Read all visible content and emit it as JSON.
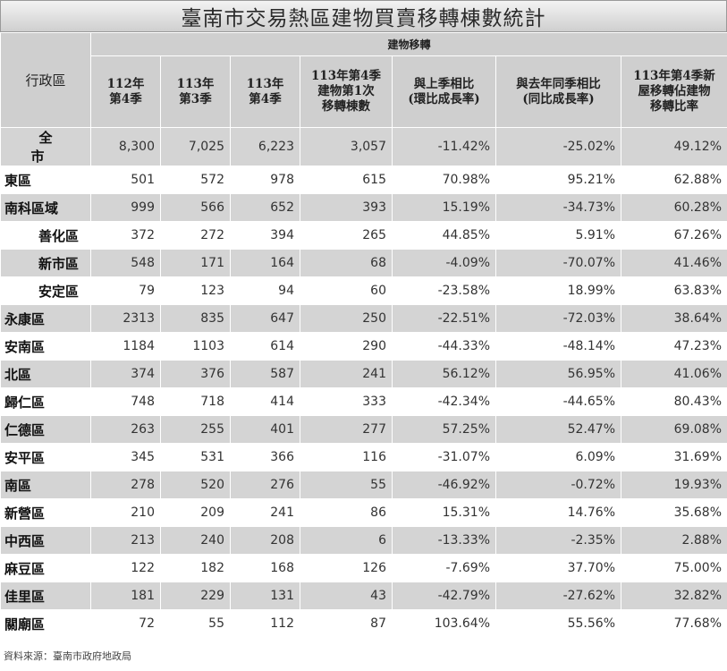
{
  "title": "臺南市交易熱區建物買賣移轉棟數統計",
  "header": {
    "district_label": "行政區",
    "group_label": "建物移轉",
    "columns": [
      "112年\n第4季",
      "113年\n第3季",
      "113年\n第4季",
      "113年第4季\n建物第1次\n移轉棟數",
      "與上季相比\n(環比成長率)",
      "與去年同季相比\n(同比成長率)",
      "113年第4季新\n屋移轉佔建物\n移轉比率"
    ]
  },
  "rows": [
    {
      "name": "全 市",
      "v": [
        "8,300",
        "7,025",
        "6,223",
        "3,057",
        "-11.42%",
        "-25.02%",
        "49.12%"
      ]
    },
    {
      "name": "東區",
      "v": [
        "501",
        "572",
        "978",
        "615",
        "70.98%",
        "95.21%",
        "62.88%"
      ]
    },
    {
      "name": "南科區域",
      "v": [
        "999",
        "566",
        "652",
        "393",
        "15.19%",
        "-34.73%",
        "60.28%"
      ]
    },
    {
      "name": "善化區",
      "v": [
        "372",
        "272",
        "394",
        "265",
        "44.85%",
        "5.91%",
        "67.26%"
      ]
    },
    {
      "name": "新市區",
      "v": [
        "548",
        "171",
        "164",
        "68",
        "-4.09%",
        "-70.07%",
        "41.46%"
      ]
    },
    {
      "name": "安定區",
      "v": [
        "79",
        "123",
        "94",
        "60",
        "-23.58%",
        "18.99%",
        "63.83%"
      ]
    },
    {
      "name": "永康區",
      "v": [
        "2313",
        "835",
        "647",
        "250",
        "-22.51%",
        "-72.03%",
        "38.64%"
      ]
    },
    {
      "name": "安南區",
      "v": [
        "1184",
        "1103",
        "614",
        "290",
        "-44.33%",
        "-48.14%",
        "47.23%"
      ]
    },
    {
      "name": "北區",
      "v": [
        "374",
        "376",
        "587",
        "241",
        "56.12%",
        "56.95%",
        "41.06%"
      ]
    },
    {
      "name": "歸仁區",
      "v": [
        "748",
        "718",
        "414",
        "333",
        "-42.34%",
        "-44.65%",
        "80.43%"
      ]
    },
    {
      "name": "仁德區",
      "v": [
        "263",
        "255",
        "401",
        "277",
        "57.25%",
        "52.47%",
        "69.08%"
      ]
    },
    {
      "name": "安平區",
      "v": [
        "345",
        "531",
        "366",
        "116",
        "-31.07%",
        "6.09%",
        "31.69%"
      ]
    },
    {
      "name": "南區",
      "v": [
        "278",
        "520",
        "276",
        "55",
        "-46.92%",
        "-0.72%",
        "19.93%"
      ]
    },
    {
      "name": "新營區",
      "v": [
        "210",
        "209",
        "241",
        "86",
        "15.31%",
        "14.76%",
        "35.68%"
      ]
    },
    {
      "name": "中西區",
      "v": [
        "213",
        "240",
        "208",
        "6",
        "-13.33%",
        "-2.35%",
        "2.88%"
      ]
    },
    {
      "name": "麻豆區",
      "v": [
        "122",
        "182",
        "168",
        "126",
        "-7.69%",
        "37.70%",
        "75.00%"
      ]
    },
    {
      "name": "佳里區",
      "v": [
        "181",
        "229",
        "131",
        "43",
        "-42.79%",
        "-27.62%",
        "32.82%"
      ]
    },
    {
      "name": "關廟區",
      "v": [
        "72",
        "55",
        "112",
        "87",
        "103.64%",
        "55.56%",
        "77.68%"
      ]
    }
  ],
  "source": "資料來源：臺南市政府地政局"
}
